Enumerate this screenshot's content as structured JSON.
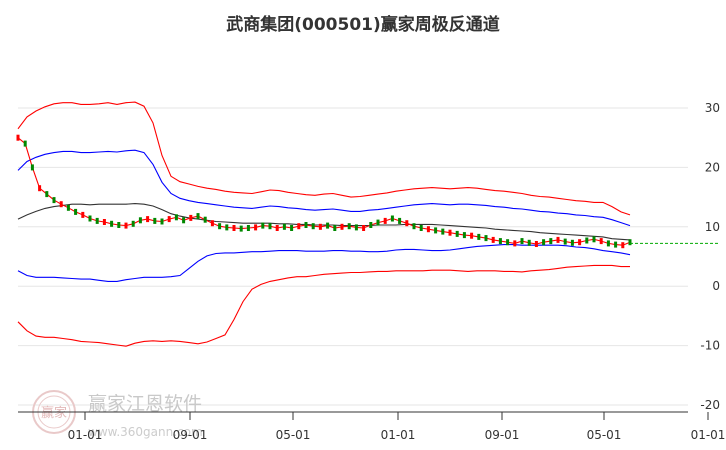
{
  "chart_data": {
    "type": "line",
    "title": "武商集团(000501)赢家周极反通道",
    "xlabel": "",
    "ylabel": "",
    "ylim": [
      -20,
      30
    ],
    "y_ticks": [
      "30",
      "20",
      "10",
      "0",
      "-10",
      "-20"
    ],
    "x_ticks": [
      "01-01",
      "09-01",
      "05-01",
      "01-01",
      "09-01",
      "05-01",
      "01-01"
    ],
    "grid": true,
    "legend": "none",
    "series": [
      {
        "color": "#ff0000",
        "values": [
          26.5,
          28.5,
          29.5,
          30.2,
          30.7,
          30.9,
          30.9,
          30.6,
          30.6,
          30.7,
          30.9,
          30.6,
          30.9,
          31.0,
          30.3,
          27.5,
          22.0,
          18.5,
          17.6,
          17.2,
          16.8,
          16.5,
          16.3,
          16.0,
          15.8,
          15.7,
          15.6,
          15.9,
          16.2,
          16.1,
          15.8,
          15.6,
          15.4,
          15.3,
          15.5,
          15.6,
          15.3,
          15.0,
          15.1,
          15.3,
          15.5,
          15.7,
          16.0,
          16.2,
          16.4,
          16.5,
          16.6,
          16.5,
          16.4,
          16.5,
          16.6,
          16.5,
          16.3,
          16.1,
          16.0,
          15.8,
          15.6,
          15.3,
          15.1,
          15.0,
          14.8,
          14.6,
          14.4,
          14.3,
          14.1,
          14.1,
          13.4,
          12.5,
          12.0
        ]
      },
      {
        "color": "#0000ff",
        "values": [
          19.5,
          21.0,
          21.7,
          22.2,
          22.5,
          22.7,
          22.7,
          22.5,
          22.5,
          22.6,
          22.7,
          22.6,
          22.8,
          22.9,
          22.5,
          20.5,
          17.5,
          15.6,
          14.8,
          14.4,
          14.1,
          13.9,
          13.7,
          13.5,
          13.3,
          13.2,
          13.1,
          13.3,
          13.5,
          13.4,
          13.2,
          13.1,
          12.9,
          12.8,
          12.9,
          13.0,
          12.8,
          12.6,
          12.6,
          12.8,
          12.9,
          13.1,
          13.3,
          13.5,
          13.7,
          13.8,
          13.9,
          13.8,
          13.7,
          13.8,
          13.8,
          13.7,
          13.6,
          13.4,
          13.3,
          13.1,
          13.0,
          12.8,
          12.6,
          12.5,
          12.3,
          12.2,
          12.0,
          11.9,
          11.7,
          11.6,
          11.2,
          10.7,
          10.2
        ]
      },
      {
        "color": "#333333",
        "values": [
          11.3,
          12.0,
          12.6,
          13.1,
          13.4,
          13.6,
          13.8,
          13.8,
          13.7,
          13.8,
          13.8,
          13.8,
          13.8,
          13.9,
          13.8,
          13.5,
          12.9,
          12.2,
          11.8,
          11.5,
          11.3,
          11.1,
          10.9,
          10.8,
          10.7,
          10.6,
          10.6,
          10.6,
          10.6,
          10.5,
          10.5,
          10.4,
          10.4,
          10.3,
          10.3,
          10.3,
          10.2,
          10.2,
          10.2,
          10.2,
          10.3,
          10.3,
          10.3,
          10.4,
          10.4,
          10.4,
          10.4,
          10.3,
          10.2,
          10.1,
          10.0,
          9.9,
          9.8,
          9.6,
          9.5,
          9.4,
          9.3,
          9.2,
          9.0,
          8.9,
          8.8,
          8.7,
          8.6,
          8.5,
          8.4,
          8.3,
          8.0,
          7.9,
          7.8
        ]
      },
      {
        "color": "#0000ff",
        "values": [
          2.6,
          1.8,
          1.5,
          1.5,
          1.5,
          1.4,
          1.3,
          1.2,
          1.2,
          1.0,
          0.8,
          0.8,
          1.1,
          1.3,
          1.5,
          1.5,
          1.5,
          1.6,
          1.8,
          3.0,
          4.2,
          5.1,
          5.5,
          5.6,
          5.6,
          5.7,
          5.8,
          5.8,
          5.9,
          6.0,
          6.0,
          6.0,
          5.9,
          5.9,
          5.9,
          6.0,
          6.0,
          5.9,
          5.9,
          5.8,
          5.8,
          5.9,
          6.1,
          6.2,
          6.2,
          6.1,
          6.0,
          6.0,
          6.1,
          6.3,
          6.5,
          6.7,
          6.8,
          6.9,
          7.0,
          7.0,
          6.9,
          6.9,
          6.9,
          6.9,
          6.9,
          6.8,
          6.6,
          6.5,
          6.3,
          6.0,
          5.8,
          5.6,
          5.3
        ]
      },
      {
        "color": "#ff0000",
        "values": [
          -6.0,
          -7.5,
          -8.4,
          -8.6,
          -8.6,
          -8.8,
          -9.0,
          -9.3,
          -9.4,
          -9.5,
          -9.7,
          -9.9,
          -10.1,
          -9.6,
          -9.3,
          -9.2,
          -9.3,
          -9.2,
          -9.3,
          -9.5,
          -9.7,
          -9.4,
          -8.8,
          -8.2,
          -5.6,
          -2.6,
          -0.5,
          0.3,
          0.8,
          1.1,
          1.4,
          1.6,
          1.6,
          1.8,
          2.0,
          2.1,
          2.2,
          2.3,
          2.3,
          2.4,
          2.5,
          2.5,
          2.6,
          2.6,
          2.6,
          2.6,
          2.7,
          2.7,
          2.7,
          2.6,
          2.5,
          2.6,
          2.6,
          2.6,
          2.5,
          2.5,
          2.4,
          2.6,
          2.7,
          2.8,
          3.0,
          3.2,
          3.3,
          3.4,
          3.5,
          3.5,
          3.5,
          3.3,
          3.3
        ]
      },
      {
        "color": "#ff0000",
        "values": [
          25.0,
          24.0,
          20.0,
          16.5,
          15.5,
          14.5,
          13.8,
          13.2,
          12.5,
          12.0,
          11.4,
          11.0,
          10.8,
          10.5,
          10.3,
          10.2,
          10.5,
          11.1,
          11.3,
          11.0,
          10.9,
          11.3,
          11.6,
          11.1,
          11.5,
          11.8,
          11.2,
          10.6,
          10.1,
          9.9,
          9.8,
          9.7,
          9.8,
          9.9,
          10.2,
          10.1,
          9.8,
          10.0,
          9.8,
          10.1,
          10.3,
          10.1,
          10.0,
          10.2,
          9.8,
          10.0,
          10.1,
          9.9,
          9.8,
          10.3,
          10.7,
          11.0,
          11.4,
          11.0,
          10.6,
          10.1,
          9.8,
          9.6,
          9.4,
          9.2,
          9.0,
          8.8,
          8.6,
          8.5,
          8.3,
          8.1,
          7.8,
          7.6,
          7.4,
          7.2,
          7.6,
          7.3,
          7.1,
          7.4,
          7.6,
          7.8,
          7.5,
          7.3,
          7.4,
          7.7,
          7.9,
          7.6,
          7.2,
          7.0,
          6.9,
          7.4
        ]
      },
      {
        "color": "#00aa00",
        "values": [
          7.2,
          7.2,
          7.2,
          7.2,
          7.2
        ]
      }
    ]
  },
  "watermark": {
    "logo_text": "赢家",
    "brand": "赢家江恩软件",
    "url": "www.360gann.com"
  }
}
